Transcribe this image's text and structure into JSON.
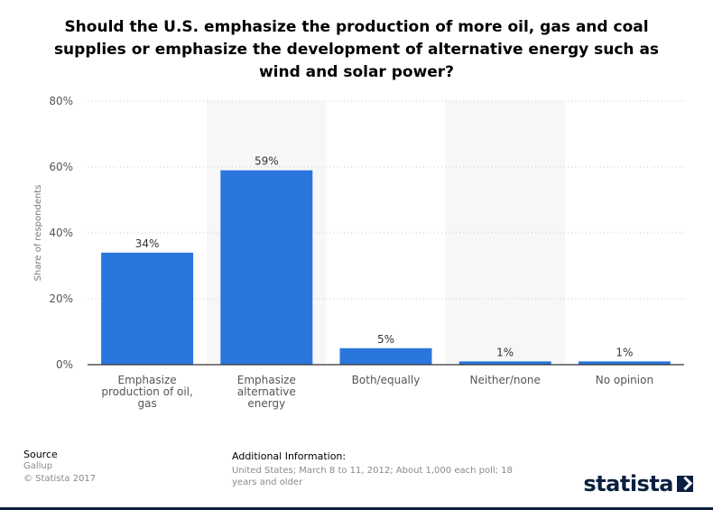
{
  "chart_data": {
    "type": "bar",
    "title": "Should the U.S. emphasize the production of more oil, gas and coal supplies or emphasize the development of alternative energy such as wind and solar power?",
    "categories": [
      [
        "Emphasize",
        "production of oil,",
        "gas"
      ],
      [
        "Emphasize",
        "alternative",
        "energy"
      ],
      [
        "Both/equally"
      ],
      [
        "Neither/none"
      ],
      [
        "No opinion"
      ]
    ],
    "values": [
      34,
      59,
      5,
      1,
      1
    ],
    "value_labels": [
      "34%",
      "59%",
      "5%",
      "1%",
      "1%"
    ],
    "ylabel": "Share of respondents",
    "ylim": [
      0,
      80
    ],
    "yticks": [
      0,
      20,
      40,
      60,
      80
    ],
    "ytick_labels": [
      "0%",
      "20%",
      "40%",
      "60%",
      "80%"
    ],
    "grid": true,
    "bar_color": "#2a76dd"
  },
  "footer": {
    "source_label": "Source",
    "source_name": "Gallup",
    "copyright": "© Statista 2017",
    "info_label": "Additional Information:",
    "info_text": "United States; March 8 to 11, 2012; About 1,000 each poll; 18 years and older",
    "brand": "statista"
  }
}
